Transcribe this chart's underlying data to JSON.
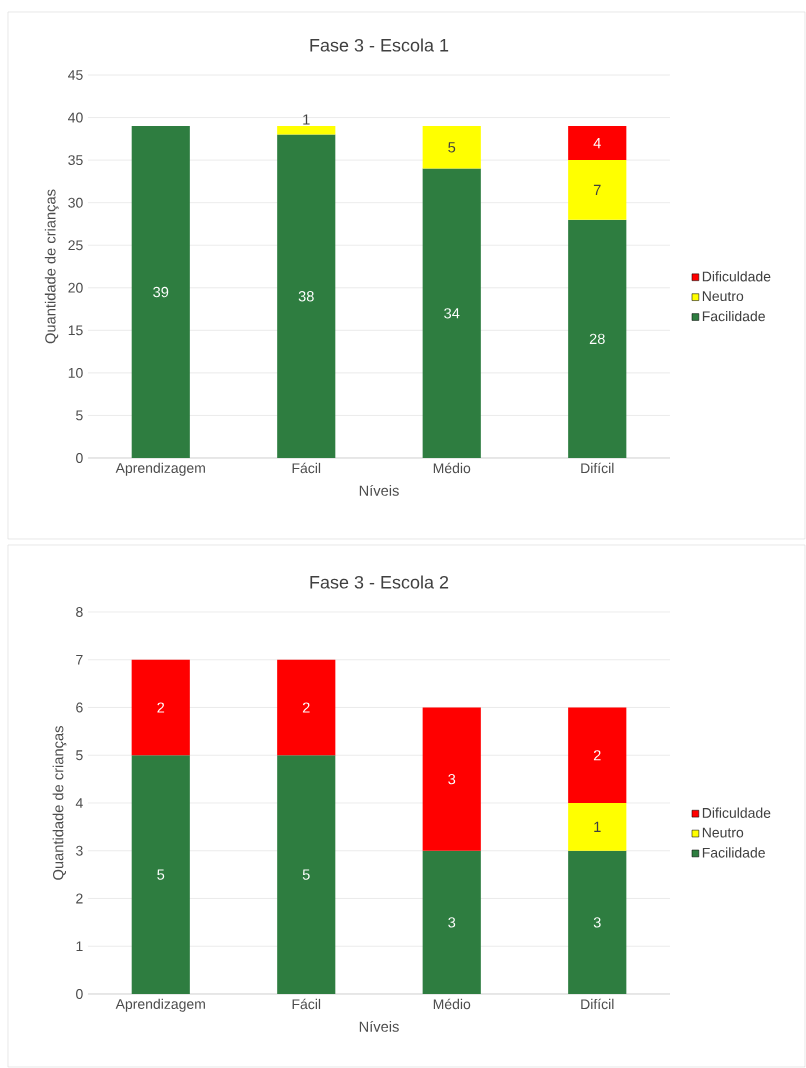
{
  "chart_data": [
    {
      "type": "bar",
      "stacked": true,
      "title": "Fase 3 - Escola 1",
      "xlabel": "Níveis",
      "ylabel": "Quantidade de crianças",
      "categories": [
        "Aprendizagem",
        "Fácil",
        "Médio",
        "Difícil"
      ],
      "series": [
        {
          "name": "Facilidade",
          "color": "#2e7d40",
          "values": [
            39,
            38,
            34,
            28
          ]
        },
        {
          "name": "Neutro",
          "color": "#ffff00",
          "values": [
            null,
            1,
            5,
            7
          ]
        },
        {
          "name": "Dificuldade",
          "color": "#ff0000",
          "values": [
            null,
            null,
            null,
            4
          ]
        }
      ],
      "ylim": [
        0,
        45
      ],
      "yticks": [
        0,
        5,
        10,
        15,
        20,
        25,
        30,
        35,
        40,
        45
      ],
      "grid": "y",
      "legend": "right",
      "data_labels": true
    },
    {
      "type": "bar",
      "stacked": true,
      "title": "Fase 3 - Escola 2",
      "xlabel": "Níveis",
      "ylabel": "Quantidade de crianças",
      "categories": [
        "Aprendizagem",
        "Fácil",
        "Médio",
        "Difícil"
      ],
      "series": [
        {
          "name": "Facilidade",
          "color": "#2e7d40",
          "values": [
            5,
            5,
            3,
            3
          ]
        },
        {
          "name": "Neutro",
          "color": "#ffff00",
          "values": [
            null,
            null,
            null,
            1
          ]
        },
        {
          "name": "Dificuldade",
          "color": "#ff0000",
          "values": [
            2,
            2,
            3,
            2
          ]
        }
      ],
      "ylim": [
        0,
        8
      ],
      "yticks": [
        0,
        1,
        2,
        3,
        4,
        5,
        6,
        7,
        8
      ],
      "grid": "y",
      "legend": "right",
      "data_labels": true
    }
  ]
}
